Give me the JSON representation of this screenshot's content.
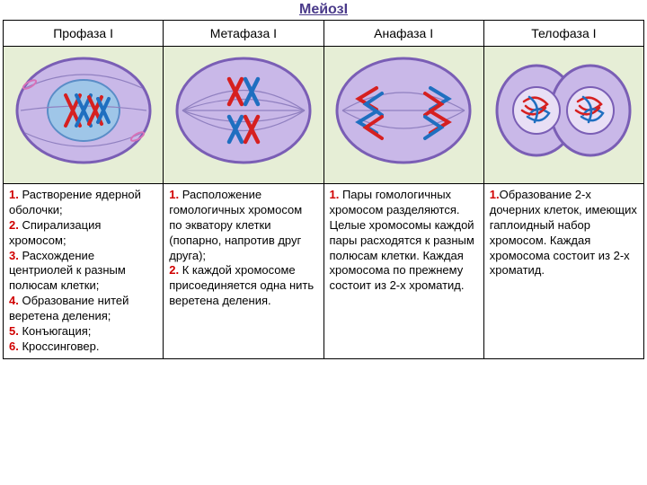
{
  "title": "МейозI",
  "headers": [
    "Профаза I",
    "Метафаза I",
    "Анафаза I",
    "Телофаза I"
  ],
  "colors": {
    "cell_membrane": "#7a5eb5",
    "cell_fill": "#c9b8e8",
    "nucleus_fill": "#9fc6e8",
    "nucleus_stroke": "#5a8dc7",
    "chrom_red": "#d62020",
    "chrom_blue": "#1f6fc0",
    "spindle": "#9080c0",
    "centriole": "#d672b8",
    "bg_cell_panel": "#e6eed6",
    "number_color": "#d00000",
    "title_color": "#4a3a8a"
  },
  "descriptions": {
    "prophase": [
      {
        "n": "1.",
        "t": " Растворение ядерной оболочки;"
      },
      {
        "n": "2.",
        "t": " Спирализация хромосом;"
      },
      {
        "n": "3.",
        "t": " Расхождение центриолей к разным полюсам клетки;"
      },
      {
        "n": "4.",
        "t": " Образование нитей веретена деления;"
      },
      {
        "n": "5.",
        "t": " Конъюгация;"
      },
      {
        "n": "6.",
        "t": " Кроссинговер."
      }
    ],
    "metaphase": [
      {
        "n": "1.",
        "t": " Расположение гомологичных хромосом по экватору клетки (попарно, напротив друг друга);"
      },
      {
        "n": "2.",
        "t": " К каждой хромосоме присоединяется одна нить веретена деления."
      }
    ],
    "anaphase": [
      {
        "n": "1.",
        "t": " Пары гомологичных хромосом разделяются. Целые хромосомы каждой пары расходятся к разным полюсам клетки. Каждая хромосома по прежнему состоит из 2-х хроматид."
      }
    ],
    "telophase": [
      {
        "n": "1.",
        "t": "Образование 2-х дочерних клеток, имеющих гаплоидный набор хромосом. Каждая хромосома состоит из 2-х хроматид."
      }
    ]
  }
}
